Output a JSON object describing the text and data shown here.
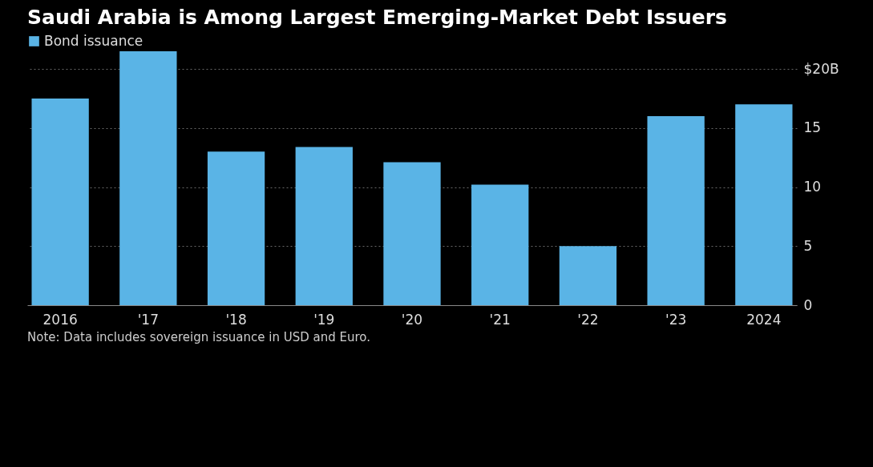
{
  "chart_data": {
    "type": "bar",
    "title": "Saudi Arabia is Among Largest Emerging-Market Debt Issuers",
    "categories": [
      "2016",
      "'17",
      "'18",
      "'19",
      "'20",
      "'21",
      "'22",
      "'23",
      "2024"
    ],
    "series": [
      {
        "name": "Bond issuance",
        "color": "#5ab4e6",
        "values": [
          17.5,
          21.5,
          13.0,
          13.4,
          12.1,
          10.2,
          5.0,
          16.0,
          17.0
        ]
      }
    ],
    "ylim": [
      0,
      21.5
    ],
    "yticks": [
      0,
      5,
      10,
      15,
      {
        "value": 20,
        "label": "$20B"
      }
    ],
    "grid": "y",
    "legend": "top left",
    "annotations": [
      "Note: Data includes sovereign issuance in USD and Euro."
    ]
  }
}
